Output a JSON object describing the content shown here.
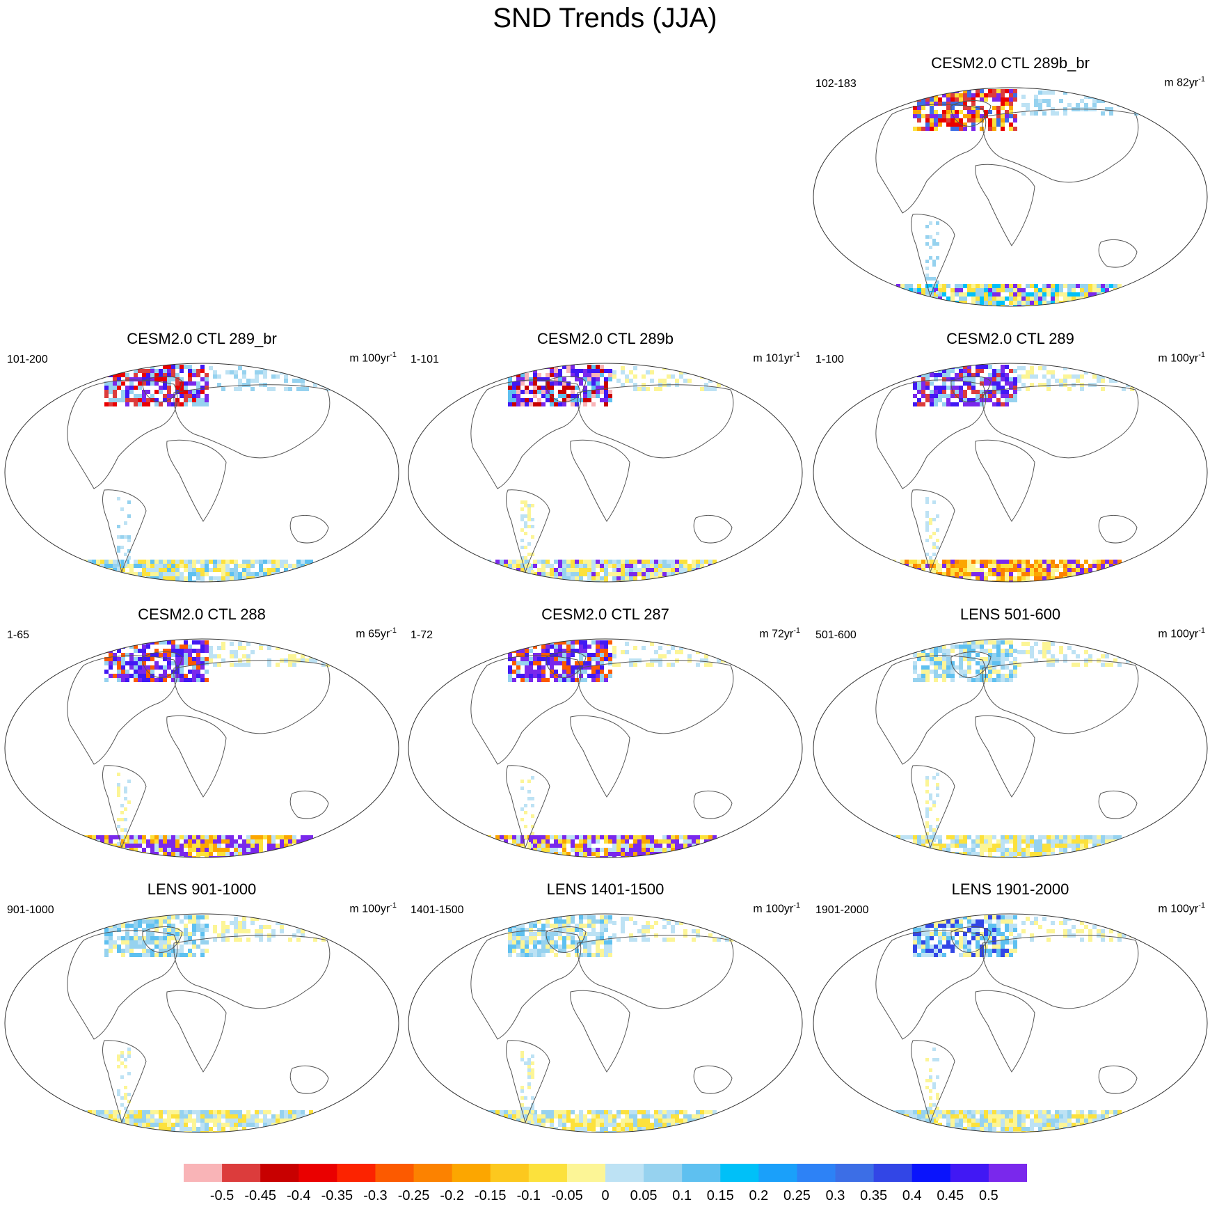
{
  "figure": {
    "title": "SND Trends (JJA)"
  },
  "panels": [
    {
      "title": "CESM2.0 CTL 289b_br",
      "years": "102-183",
      "units_prefix": "m 82yr",
      "units_exp": "-1",
      "pattern": "mixed_pos_south"
    },
    {
      "title": "CESM2.0 CTL 289_br",
      "years": "101-200",
      "units_prefix": "m 100yr",
      "units_exp": "-1",
      "pattern": "mixed_blue"
    },
    {
      "title": "CESM2.0 CTL 289b",
      "years": "1-101",
      "units_prefix": "m 101yr",
      "units_exp": "-1",
      "pattern": "mixed_purple"
    },
    {
      "title": "CESM2.0 CTL 289",
      "years": "1-100",
      "units_prefix": "m 100yr",
      "units_exp": "-1",
      "pattern": "mixed_orange"
    },
    {
      "title": "CESM2.0 CTL 288",
      "years": "1-65",
      "units_prefix": "m 65yr",
      "units_exp": "-1",
      "pattern": "strong_purple"
    },
    {
      "title": "CESM2.0 CTL 287",
      "years": "1-72",
      "units_prefix": "m 72yr",
      "units_exp": "-1",
      "pattern": "strong_purple"
    },
    {
      "title": "LENS 501-600",
      "years": "501-600",
      "units_prefix": "m 100yr",
      "units_exp": "-1",
      "pattern": "weak"
    },
    {
      "title": "LENS 901-1000",
      "years": "901-1000",
      "units_prefix": "m 100yr",
      "units_exp": "-1",
      "pattern": "weak"
    },
    {
      "title": "LENS 1401-1500",
      "years": "1401-1500",
      "units_prefix": "m 100yr",
      "units_exp": "-1",
      "pattern": "weak"
    },
    {
      "title": "LENS 1901-2000",
      "years": "1901-2000",
      "units_prefix": "m 100yr",
      "units_exp": "-1",
      "pattern": "weak_blue"
    }
  ],
  "colorbar": {
    "labels": [
      "-0.5",
      "-0.45",
      "-0.4",
      "-0.35",
      "-0.3",
      "-0.25",
      "-0.2",
      "-0.15",
      "-0.1",
      "-0.05",
      "0",
      "0.05",
      "0.1",
      "0.15",
      "0.2",
      "0.25",
      "0.3",
      "0.35",
      "0.4",
      "0.45",
      "0.5"
    ],
    "colors": [
      "#f9b4b7",
      "#dc3c3c",
      "#c80000",
      "#ea0000",
      "#fc2300",
      "#fc5a00",
      "#fc8200",
      "#fca600",
      "#fcc81e",
      "#fce13c",
      "#fcf596",
      "#bde2f4",
      "#96d2ef",
      "#5ec0f0",
      "#00c0f8",
      "#1aa0fa",
      "#2d82f6",
      "#3c6ee6",
      "#3246e6",
      "#0a14fc",
      "#4118f4",
      "#7a28ec"
    ]
  }
}
